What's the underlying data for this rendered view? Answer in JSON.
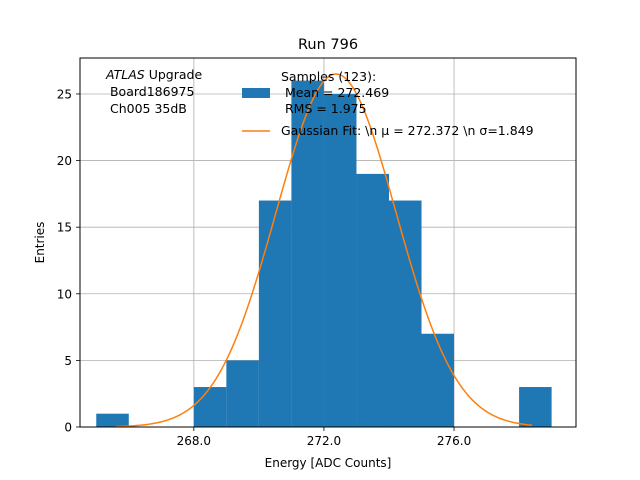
{
  "chart_data": {
    "type": "bar",
    "title": "Run 796",
    "xlabel": "Energy [ADC Counts]",
    "ylabel": "Entries",
    "xlim": [
      264.5,
      279.75
    ],
    "ylim": [
      0,
      27.7
    ],
    "grid": true,
    "x_ticks": [
      268.0,
      272.0,
      276.0
    ],
    "x_tick_labels": [
      "268.0",
      "272.0",
      "276.0"
    ],
    "y_ticks": [
      0,
      5,
      10,
      15,
      20,
      25
    ],
    "y_tick_labels": [
      "0",
      "5",
      "10",
      "15",
      "20",
      "25"
    ],
    "bins": [
      {
        "x0": 265.0,
        "x1": 266.0,
        "count": 1
      },
      {
        "x0": 268.0,
        "x1": 269.0,
        "count": 3
      },
      {
        "x0": 269.0,
        "x1": 270.0,
        "count": 5
      },
      {
        "x0": 270.0,
        "x1": 271.0,
        "count": 17
      },
      {
        "x0": 271.0,
        "x1": 272.0,
        "count": 26
      },
      {
        "x0": 272.0,
        "x1": 273.0,
        "count": 25
      },
      {
        "x0": 273.0,
        "x1": 274.0,
        "count": 19
      },
      {
        "x0": 274.0,
        "x1": 275.0,
        "count": 17
      },
      {
        "x0": 275.0,
        "x1": 276.0,
        "count": 7
      },
      {
        "x0": 278.0,
        "x1": 279.0,
        "count": 3
      }
    ],
    "fit": {
      "mu": 272.372,
      "sigma": 1.849,
      "amplitude": 26.5,
      "x_start": 265.6,
      "x_end": 278.4
    },
    "colors": {
      "bars": "#1f77b4",
      "fit": "#ff7f0e",
      "grid": "#b0b0b0"
    },
    "legend": {
      "placement": "top-right",
      "entries": [
        {
          "series": "histogram",
          "lines": [
            "Samples (123):",
            " Mean = 272.469",
            " RMS = 1.975"
          ]
        },
        {
          "series": "fit",
          "lines": [
            "Gaussian Fit: \\n μ = 272.372 \\n σ=1.849"
          ]
        }
      ]
    },
    "annotation": {
      "italic": "ATLAS",
      "rest": " Upgrade",
      "lines": [
        " Board186975",
        " Ch005 35dB"
      ]
    }
  }
}
